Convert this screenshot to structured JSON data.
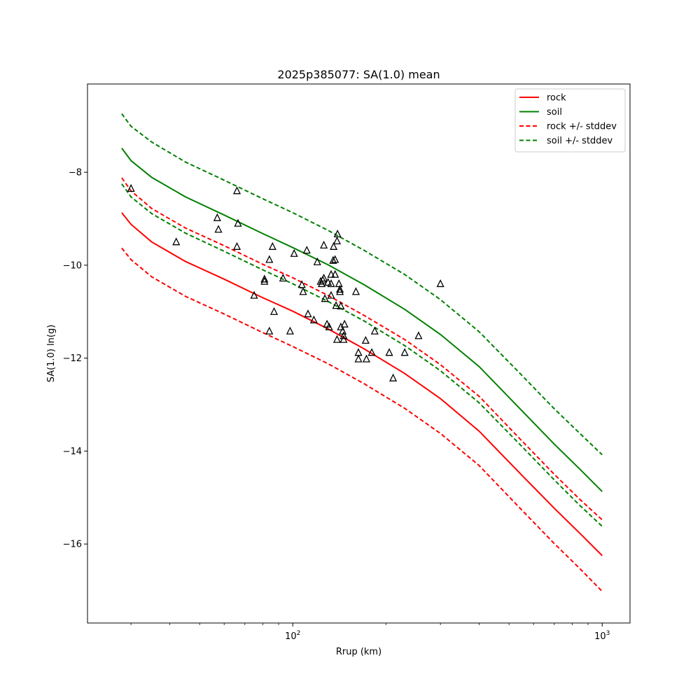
{
  "chart_data": {
    "type": "line",
    "title": "2025p385077: SA(1.0) mean",
    "xlabel": "Rrup (km)",
    "ylabel": "SA(1.0) ln(g)",
    "xscale": "log",
    "xlim": [
      21.7,
      1230
    ],
    "ylim": [
      -17.7,
      -6.1
    ],
    "xticks": [
      {
        "value": 100,
        "base": "10",
        "exp": "2"
      },
      {
        "value": 1000,
        "base": "10",
        "exp": "3"
      }
    ],
    "yticks": [
      {
        "value": -8,
        "label": "−8"
      },
      {
        "value": -10,
        "label": "−10"
      },
      {
        "value": -12,
        "label": "−12"
      },
      {
        "value": -14,
        "label": "−14"
      },
      {
        "value": -16,
        "label": "−16"
      }
    ],
    "grid": false,
    "legend_position": "top-right",
    "series": [
      {
        "name": "rock",
        "color": "#ff0000",
        "dash": "solid",
        "x": [
          28,
          30,
          35,
          45,
          60,
          80,
          100,
          130,
          170,
          230,
          300,
          400,
          550,
          700,
          850,
          1000
        ],
        "y": [
          -8.87,
          -9.12,
          -9.5,
          -9.92,
          -10.3,
          -10.7,
          -10.99,
          -11.37,
          -11.8,
          -12.33,
          -12.87,
          -13.57,
          -14.52,
          -15.23,
          -15.78,
          -16.25
        ]
      },
      {
        "name": "soil",
        "color": "#008000",
        "dash": "solid",
        "x": [
          28,
          30,
          35,
          45,
          60,
          80,
          100,
          130,
          170,
          230,
          300,
          400,
          550,
          700,
          850,
          1000
        ],
        "y": [
          -7.48,
          -7.75,
          -8.11,
          -8.53,
          -8.92,
          -9.32,
          -9.62,
          -9.99,
          -10.42,
          -10.95,
          -11.49,
          -12.18,
          -13.13,
          -13.85,
          -14.4,
          -14.87
        ]
      },
      {
        "name": "rock +/- stddev",
        "color": "#ff0000",
        "dash": "dashed",
        "x": [
          28,
          30,
          35,
          45,
          60,
          80,
          100,
          130,
          170,
          230,
          300,
          400,
          550,
          700,
          850,
          1000
        ],
        "y": [
          -8.12,
          -8.4,
          -8.78,
          -9.2,
          -9.58,
          -9.98,
          -10.27,
          -10.65,
          -11.08,
          -11.6,
          -12.14,
          -12.82,
          -13.78,
          -14.5,
          -15.05,
          -15.48
        ]
      },
      {
        "name": "",
        "color": "#ff0000",
        "dash": "dashed",
        "x": [
          28,
          30,
          35,
          45,
          60,
          80,
          100,
          130,
          170,
          230,
          300,
          400,
          550,
          700,
          850,
          1000
        ],
        "y": [
          -9.63,
          -9.88,
          -10.25,
          -10.67,
          -11.05,
          -11.45,
          -11.75,
          -12.12,
          -12.55,
          -13.08,
          -13.62,
          -14.31,
          -15.27,
          -15.99,
          -16.54,
          -17.02
        ]
      },
      {
        "name": "soil +/- stddev",
        "color": "#008000",
        "dash": "dashed",
        "x": [
          28,
          30,
          35,
          45,
          60,
          80,
          100,
          130,
          170,
          230,
          300,
          400,
          550,
          700,
          850,
          1000
        ],
        "y": [
          -6.74,
          -7.01,
          -7.35,
          -7.78,
          -8.17,
          -8.57,
          -8.87,
          -9.25,
          -9.68,
          -10.2,
          -10.74,
          -11.43,
          -12.37,
          -13.09,
          -13.63,
          -14.08
        ]
      },
      {
        "name": "",
        "color": "#008000",
        "dash": "dashed",
        "x": [
          28,
          30,
          35,
          45,
          60,
          80,
          100,
          130,
          170,
          230,
          300,
          400,
          550,
          700,
          850,
          1000
        ],
        "y": [
          -8.25,
          -8.53,
          -8.89,
          -9.31,
          -9.7,
          -10.1,
          -10.4,
          -10.78,
          -11.2,
          -11.73,
          -12.27,
          -12.96,
          -13.9,
          -14.62,
          -15.18,
          -15.62
        ]
      }
    ],
    "observations": {
      "marker": "triangle",
      "color": "#000000",
      "points": [
        {
          "x": 30.0,
          "y": -8.35
        },
        {
          "x": 42.0,
          "y": -9.5
        },
        {
          "x": 57.0,
          "y": -8.98
        },
        {
          "x": 57.5,
          "y": -9.23
        },
        {
          "x": 66.0,
          "y": -8.4
        },
        {
          "x": 66.5,
          "y": -9.1
        },
        {
          "x": 66.0,
          "y": -9.6
        },
        {
          "x": 75.0,
          "y": -10.65
        },
        {
          "x": 81.0,
          "y": -10.3
        },
        {
          "x": 81.0,
          "y": -10.35
        },
        {
          "x": 84.0,
          "y": -9.88
        },
        {
          "x": 84.0,
          "y": -11.42
        },
        {
          "x": 86.0,
          "y": -9.6
        },
        {
          "x": 87.0,
          "y": -11.0
        },
        {
          "x": 93.0,
          "y": -10.28
        },
        {
          "x": 98.0,
          "y": -11.42
        },
        {
          "x": 101.0,
          "y": -9.75
        },
        {
          "x": 107.0,
          "y": -10.42
        },
        {
          "x": 108.0,
          "y": -10.57
        },
        {
          "x": 111.0,
          "y": -9.68
        },
        {
          "x": 112.0,
          "y": -11.05
        },
        {
          "x": 117.0,
          "y": -11.18
        },
        {
          "x": 120.0,
          "y": -9.93
        },
        {
          "x": 123.0,
          "y": -10.35
        },
        {
          "x": 124.0,
          "y": -10.4
        },
        {
          "x": 125.0,
          "y": -10.32
        },
        {
          "x": 126.0,
          "y": -9.57
        },
        {
          "x": 126.0,
          "y": -10.28
        },
        {
          "x": 127.0,
          "y": -10.72
        },
        {
          "x": 129.0,
          "y": -11.27
        },
        {
          "x": 130.0,
          "y": -10.37
        },
        {
          "x": 131.0,
          "y": -11.33
        },
        {
          "x": 133.0,
          "y": -10.2
        },
        {
          "x": 133.0,
          "y": -10.4
        },
        {
          "x": 133.0,
          "y": -10.65
        },
        {
          "x": 135.0,
          "y": -9.9
        },
        {
          "x": 135.5,
          "y": -9.6
        },
        {
          "x": 137.0,
          "y": -9.88
        },
        {
          "x": 137.0,
          "y": -10.2
        },
        {
          "x": 138.0,
          "y": -10.87
        },
        {
          "x": 139.0,
          "y": -11.6
        },
        {
          "x": 139.0,
          "y": -9.48
        },
        {
          "x": 139.5,
          "y": -9.33
        },
        {
          "x": 141.0,
          "y": -10.4
        },
        {
          "x": 142.0,
          "y": -10.52
        },
        {
          "x": 142.0,
          "y": -10.57
        },
        {
          "x": 143.0,
          "y": -10.88
        },
        {
          "x": 143.0,
          "y": -11.33
        },
        {
          "x": 145.0,
          "y": -11.42
        },
        {
          "x": 146.0,
          "y": -11.52
        },
        {
          "x": 146.0,
          "y": -11.6
        },
        {
          "x": 147.0,
          "y": -11.27
        },
        {
          "x": 160.0,
          "y": -10.57
        },
        {
          "x": 163.0,
          "y": -11.88
        },
        {
          "x": 163.0,
          "y": -12.02
        },
        {
          "x": 172.0,
          "y": -11.62
        },
        {
          "x": 173.0,
          "y": -12.02
        },
        {
          "x": 180.0,
          "y": -11.88
        },
        {
          "x": 184.0,
          "y": -11.42
        },
        {
          "x": 205.0,
          "y": -11.88
        },
        {
          "x": 211.0,
          "y": -12.43
        },
        {
          "x": 230.0,
          "y": -11.88
        },
        {
          "x": 255.0,
          "y": -11.52
        },
        {
          "x": 300.0,
          "y": -10.4
        }
      ]
    }
  }
}
